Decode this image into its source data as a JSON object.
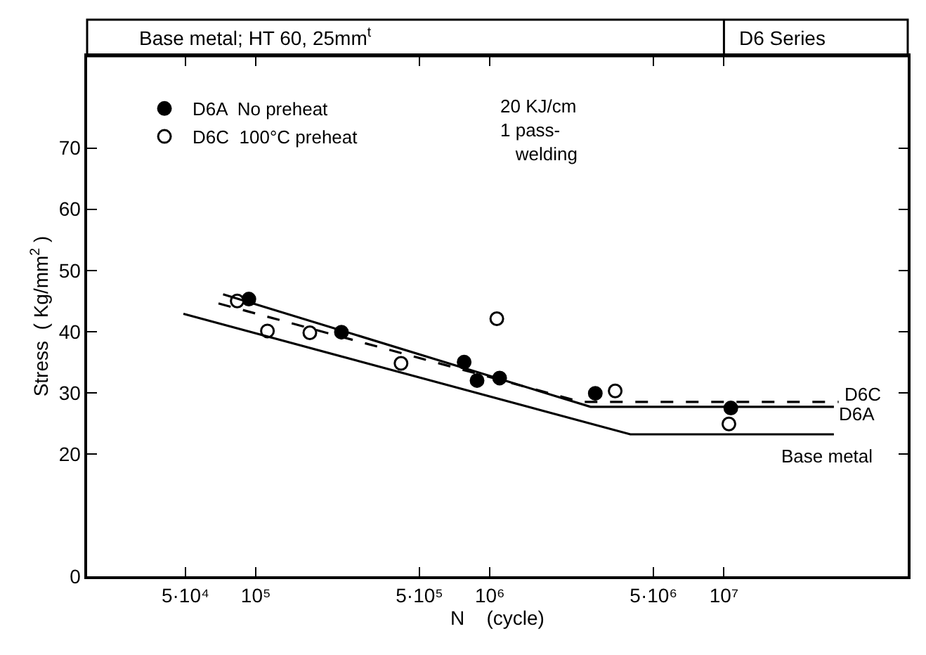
{
  "chart_data": {
    "type": "scatter",
    "title": "Base metal; HT 60, 25mm$^{t}$",
    "subtitle": "D6 Series",
    "xlabel": "N    (cycle)",
    "ylabel": "Stress  ( Kg/mm$^{2}$ )",
    "log": "x",
    "xlim": [
      19000,
      61000000
    ],
    "xticks": [
      {
        "value": 50000,
        "label": "5·10⁴"
      },
      {
        "value": 100000,
        "label": "10⁵"
      },
      {
        "value": 500000,
        "label": "5·10⁵"
      },
      {
        "value": 1000000,
        "label": "10⁶"
      },
      {
        "value": 5000000,
        "label": "5·10⁶"
      },
      {
        "value": 10000000,
        "label": "10⁷"
      }
    ],
    "ylim": [
      0,
      85
    ],
    "yticks": [
      0,
      20,
      30,
      40,
      50,
      60,
      70
    ],
    "grid": false,
    "legend": "top left",
    "marker": "circle",
    "annotations": [
      "20 KJ/cm\n1 pass-\n   welding"
    ],
    "series": [
      {
        "name": "D6A  No preheat",
        "color": "#000000",
        "x": [
          93300,
          232000,
          776000,
          881000,
          1100000,
          2820000,
          10700000
        ],
        "values": [
          45.3,
          39.9,
          35,
          32,
          32.4,
          29.9,
          27.5
        ]
      },
      {
        "name": "D6C  100°C preheat",
        "color": "#ffffff",
        "x": [
          83200,
          112000,
          170000,
          417000,
          1070000,
          3430000,
          10500000
        ],
        "values": [
          45,
          40.1,
          39.8,
          34.8,
          42.1,
          30.3,
          24.9
        ]
      },
      {
        "name": "D6C",
        "type": "line",
        "color": "#000000",
        "line_style": "dashed",
        "marker": "none",
        "x": [
          69200,
          2450000,
          30900000
        ],
        "values": [
          44.6,
          28.5,
          28.5
        ]
      },
      {
        "name": "D6A",
        "type": "line",
        "color": "#000000",
        "line_style": "solid",
        "marker": "none",
        "x": [
          72400,
          2690000,
          29500000
        ],
        "values": [
          46.1,
          27.7,
          27.7
        ]
      },
      {
        "name": "Base metal",
        "type": "line",
        "color": "#000000",
        "line_style": "solid",
        "marker": "none",
        "x": [
          49000,
          3980000,
          29500000
        ],
        "values": [
          42.9,
          23.2,
          23.2
        ]
      }
    ]
  }
}
